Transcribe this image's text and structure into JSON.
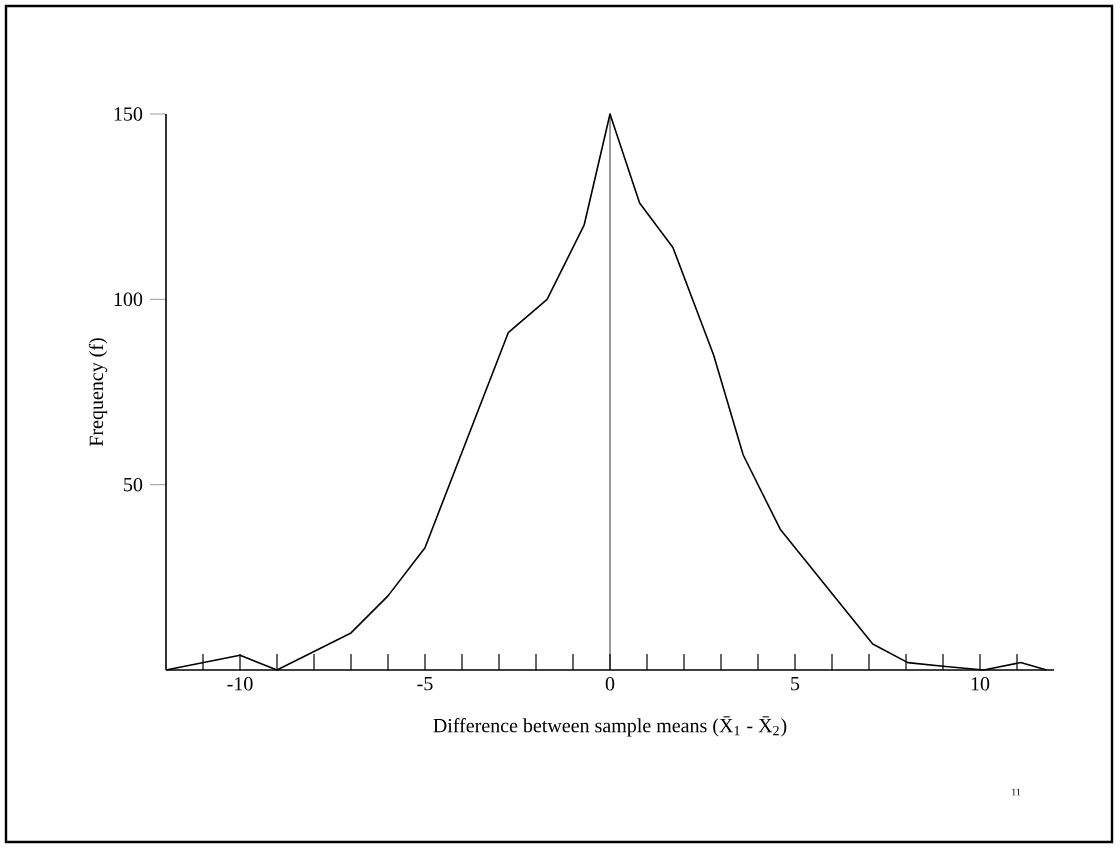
{
  "chart_data": {
    "type": "line",
    "xlabel": "Difference between sample means (X̄$_{1}$ - X̄$_{2}$)",
    "ylabel": "Frequency (f)",
    "x": [
      -12,
      -10,
      -9,
      -8,
      -7,
      -6,
      -5,
      -2.75,
      -1.7,
      -0.7,
      0,
      0.8,
      1.7,
      2.8,
      3.6,
      4.6,
      7.1,
      8.05,
      9,
      10.1,
      11.1,
      11.8
    ],
    "values": [
      0,
      4,
      0,
      5,
      10,
      20,
      33,
      91,
      100,
      120,
      150,
      126,
      114,
      85,
      58,
      38,
      7,
      2,
      1,
      0,
      2,
      0
    ],
    "color": "#000000",
    "marker": "none",
    "line_style": "solid",
    "xlim": [
      -12,
      12
    ],
    "ylim": [
      0,
      150
    ],
    "xticks": [
      {
        "value": -11,
        "label": null
      },
      -10,
      {
        "value": -9,
        "label": null
      },
      {
        "value": -8,
        "label": null
      },
      {
        "value": -7,
        "label": null
      },
      {
        "value": -6,
        "label": null
      },
      -5,
      {
        "value": -4,
        "label": null
      },
      {
        "value": -3,
        "label": null
      },
      {
        "value": -2,
        "label": null
      },
      {
        "value": -1,
        "label": null
      },
      0,
      {
        "value": 1,
        "label": null
      },
      {
        "value": 2,
        "label": null
      },
      {
        "value": 3,
        "label": null
      },
      {
        "value": 4,
        "label": null
      },
      5,
      {
        "value": 6,
        "label": null
      },
      {
        "value": 7,
        "label": null
      },
      {
        "value": 8,
        "label": null
      },
      {
        "value": 9,
        "label": null
      },
      10,
      {
        "value": 11,
        "label": null
      }
    ],
    "yticks": [
      50,
      100,
      150
    ],
    "ref_lines": [
      {
        "axis": "x",
        "value": 0,
        "color": "#000000"
      }
    ],
    "annotations": [
      "11"
    ]
  }
}
